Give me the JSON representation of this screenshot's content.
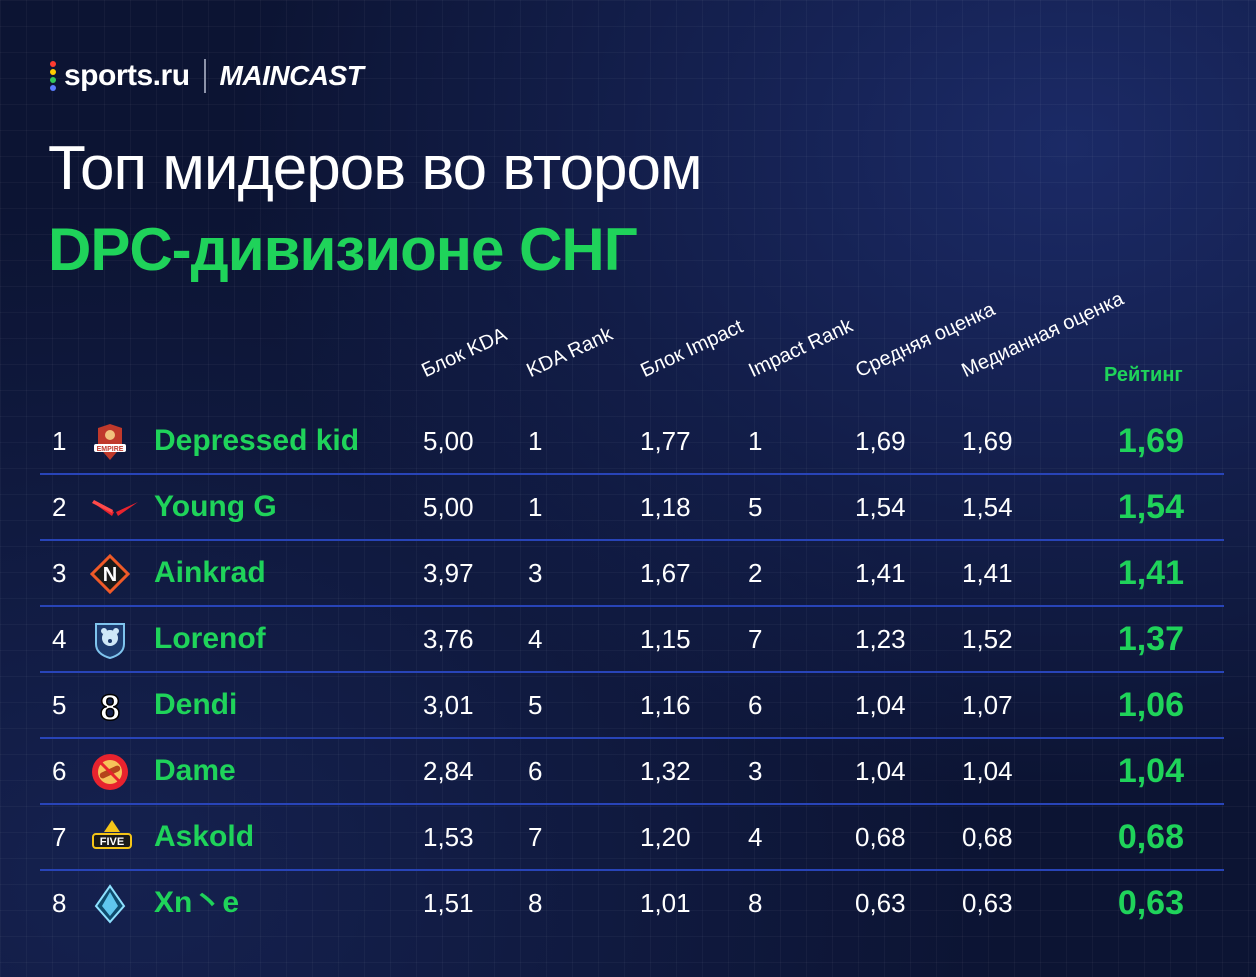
{
  "brand": {
    "sports": "sports.ru",
    "maincast": "MAINCAST"
  },
  "title_line1": "Топ мидеров во втором",
  "title_line2": "DPC-дивизионе СНГ",
  "colors": {
    "accent": "#1fd35a",
    "background": "#0c1433",
    "separator": "#2844b8"
  },
  "chart_data": {
    "type": "table",
    "columns": [
      "Блок KDA",
      "KDA Rank",
      "Блок Impact",
      "Impact Rank",
      "Средняя оценка",
      "Медианная оценка",
      "Рейтинг"
    ],
    "rows": [
      {
        "rank": "1",
        "player": "Depressed kid",
        "team_logo": "empire-logo",
        "values": [
          "5,00",
          "1",
          "1,77",
          "1",
          "1,69",
          "1,69"
        ],
        "rating": "1,69"
      },
      {
        "rank": "2",
        "player": "Young G",
        "team_logo": "virtus-pro-logo",
        "values": [
          "5,00",
          "1",
          "1,18",
          "5",
          "1,54",
          "1,54"
        ],
        "rating": "1,54"
      },
      {
        "rank": "3",
        "player": "Ainkrad",
        "team_logo": "nemiga-logo",
        "values": [
          "3,97",
          "3",
          "1,67",
          "2",
          "1,41",
          "1,41"
        ],
        "rating": "1,41"
      },
      {
        "rank": "4",
        "player": "Lorenof",
        "team_logo": "bear-shield-logo",
        "values": [
          "3,76",
          "4",
          "1,15",
          "7",
          "1,23",
          "1,52"
        ],
        "rating": "1,37"
      },
      {
        "rank": "5",
        "player": "Dendi",
        "team_logo": "b8-logo",
        "values": [
          "3,01",
          "5",
          "1,16",
          "6",
          "1,04",
          "1,07"
        ],
        "rating": "1,06"
      },
      {
        "rank": "6",
        "player": "Dame",
        "team_logo": "hotdog-logo",
        "values": [
          "2,84",
          "6",
          "1,32",
          "3",
          "1,04",
          "1,04"
        ],
        "rating": "1,04"
      },
      {
        "rank": "7",
        "player": "Askold",
        "team_logo": "five-logo",
        "values": [
          "1,53",
          "7",
          "1,20",
          "4",
          "0,68",
          "0,68"
        ],
        "rating": "0,68"
      },
      {
        "rank": "8",
        "player": "Xn丶e",
        "team_logo": "crystal-logo",
        "values": [
          "1,51",
          "8",
          "1,01",
          "8",
          "0,63",
          "0,63"
        ],
        "rating": "0,63"
      }
    ]
  }
}
